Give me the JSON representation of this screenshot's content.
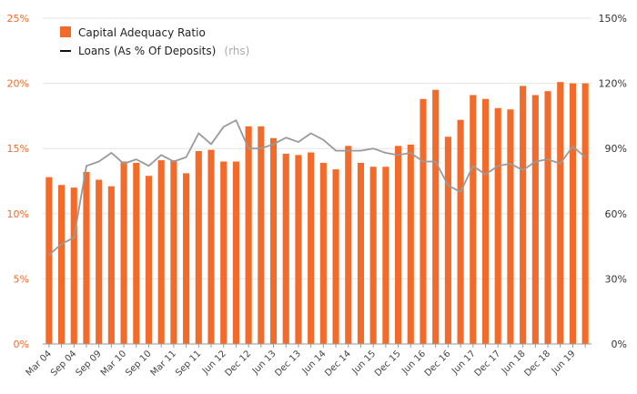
{
  "chart_data": {
    "type": "bar",
    "legend": {
      "placement": "top-left",
      "bar_label": "Capital Adequacy Ratio",
      "line_label": "Loans (As % Of Deposits)",
      "line_note": "(rhs)"
    },
    "colors": {
      "bar": "#f26b2a",
      "line": "#9a9a9a",
      "left_axis_text": "#f26b2a",
      "right_axis_text": "#333333",
      "grid": "#e6e6e6"
    },
    "grid": true,
    "y_left": {
      "lim": [
        0,
        25
      ],
      "ticks": [
        "0%",
        "5%",
        "10%",
        "15%",
        "20%",
        "25%"
      ]
    },
    "y_right": {
      "lim": [
        0,
        150
      ],
      "ticks": [
        "0%",
        "30%",
        "60%",
        "90%",
        "120%",
        "150%"
      ]
    },
    "x_labels": [
      "Mar 04",
      "",
      "Sep 04",
      "",
      "Sep 09",
      "",
      "Mar 10",
      "",
      "Sep 10",
      "",
      "Mar 11",
      "",
      "Sep 11",
      "",
      "Jun 12",
      "",
      "Dec 12",
      "",
      "Jun 13",
      "",
      "Dec 13",
      "",
      "Jun 14",
      "",
      "Dec 14",
      "",
      "Jun 15",
      "",
      "Dec 15",
      "",
      "Jun 16",
      "",
      "Dec 16",
      "",
      "Jun 17",
      "",
      "Dec 17",
      "",
      "Jun 18",
      "",
      "Dec 18",
      "",
      "Jun 19",
      ""
    ],
    "series": [
      {
        "name": "Capital Adequacy Ratio",
        "axis": "left",
        "type": "bar",
        "values": [
          12.8,
          12.2,
          12.0,
          13.2,
          12.6,
          12.1,
          14.0,
          13.9,
          12.9,
          14.1,
          14.1,
          13.1,
          14.8,
          14.9,
          14.0,
          14.0,
          16.7,
          16.7,
          15.8,
          14.6,
          14.5,
          14.7,
          13.9,
          13.4,
          15.2,
          13.9,
          13.6,
          13.6,
          15.2,
          15.3,
          18.8,
          19.5,
          15.9,
          17.2,
          19.1,
          18.8,
          18.1,
          18.0,
          19.8,
          19.1,
          19.4,
          20.1,
          20.0,
          20.0
        ]
      },
      {
        "name": "Loans (As % Of Deposits)",
        "axis": "right",
        "type": "line",
        "values": [
          41,
          46,
          49,
          82,
          84,
          88,
          83,
          85,
          82,
          87,
          84,
          86,
          97,
          92,
          100,
          103,
          90,
          90,
          92,
          95,
          93,
          97,
          94,
          89,
          89,
          89,
          90,
          88,
          87,
          88,
          84,
          84,
          73,
          70,
          82,
          78,
          82,
          83,
          80,
          84,
          85,
          83,
          91,
          86
        ]
      }
    ]
  }
}
